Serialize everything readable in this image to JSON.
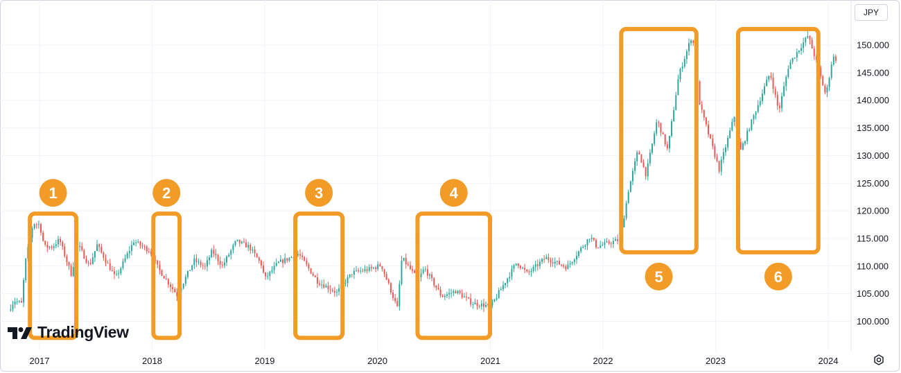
{
  "currency_label": "JPY",
  "logo_text": "TradingView",
  "chart_data": {
    "type": "candlestick",
    "title": "",
    "xlabel": "",
    "ylabel": "",
    "currency": "JPY",
    "ylim": [
      97.5,
      153.0
    ],
    "yticks": [
      100.0,
      105.0,
      110.0,
      115.0,
      120.0,
      125.0,
      130.0,
      135.0,
      140.0,
      145.0,
      150.0
    ],
    "ytick_labels": [
      "100.000",
      "105.000",
      "110.000",
      "115.000",
      "120.000",
      "125.000",
      "130.000",
      "135.000",
      "140.000",
      "145.000",
      "150.000"
    ],
    "xlim": [
      "2016-09-26",
      "2024-03-15"
    ],
    "xticks": [
      "2017-01-01",
      "2018-01-01",
      "2019-01-01",
      "2020-01-01",
      "2021-01-01",
      "2022-01-01",
      "2023-01-01",
      "2024-01-01"
    ],
    "xtick_labels": [
      "2017",
      "2018",
      "2019",
      "2020",
      "2021",
      "2022",
      "2023",
      "2024"
    ],
    "grid": true,
    "up_color": "#26a69a",
    "down_color": "#ef5350",
    "highlight_color": "#f29b26",
    "price_path": [
      [
        "2016-09-26",
        102.0
      ],
      [
        "2016-10-15",
        103.8
      ],
      [
        "2016-11-07",
        103.2
      ],
      [
        "2016-11-20",
        110.8
      ],
      [
        "2016-12-15",
        117.8
      ],
      [
        "2017-01-05",
        117.5
      ],
      [
        "2017-01-20",
        113.5
      ],
      [
        "2017-02-15",
        113.5
      ],
      [
        "2017-03-10",
        114.8
      ],
      [
        "2017-04-17",
        108.6
      ],
      [
        "2017-05-10",
        113.8
      ],
      [
        "2017-06-15",
        110.0
      ],
      [
        "2017-07-10",
        113.8
      ],
      [
        "2017-09-08",
        107.8
      ],
      [
        "2017-11-06",
        114.5
      ],
      [
        "2017-12-29",
        112.7
      ],
      [
        "2018-01-25",
        109.5
      ],
      [
        "2018-03-26",
        104.8
      ],
      [
        "2018-05-21",
        111.0
      ],
      [
        "2018-06-25",
        109.8
      ],
      [
        "2018-07-18",
        112.8
      ],
      [
        "2018-08-20",
        110.0
      ],
      [
        "2018-10-04",
        114.5
      ],
      [
        "2018-11-15",
        113.5
      ],
      [
        "2018-12-28",
        110.0
      ],
      [
        "2019-01-03",
        107.5
      ],
      [
        "2019-02-15",
        110.5
      ],
      [
        "2019-04-24",
        112.2
      ],
      [
        "2019-06-25",
        107.2
      ],
      [
        "2019-08-26",
        105.2
      ],
      [
        "2019-10-15",
        108.8
      ],
      [
        "2019-12-15",
        109.5
      ],
      [
        "2020-01-17",
        110.2
      ],
      [
        "2020-03-09",
        102.4
      ],
      [
        "2020-03-24",
        111.5
      ],
      [
        "2020-05-15",
        107.5
      ],
      [
        "2020-06-05",
        109.6
      ],
      [
        "2020-07-31",
        104.5
      ],
      [
        "2020-09-15",
        105.5
      ],
      [
        "2020-11-06",
        103.3
      ],
      [
        "2021-01-06",
        102.7
      ],
      [
        "2021-03-31",
        110.7
      ],
      [
        "2021-05-05",
        108.6
      ],
      [
        "2021-07-02",
        111.5
      ],
      [
        "2021-09-10",
        109.8
      ],
      [
        "2021-11-24",
        115.4
      ],
      [
        "2021-12-15",
        113.5
      ],
      [
        "2022-03-01",
        114.8
      ],
      [
        "2022-03-28",
        123.7
      ],
      [
        "2022-04-28",
        131.0
      ],
      [
        "2022-05-24",
        126.5
      ],
      [
        "2022-06-29",
        136.5
      ],
      [
        "2022-08-02",
        131.0
      ],
      [
        "2022-09-07",
        144.5
      ],
      [
        "2022-10-21",
        151.9
      ],
      [
        "2022-11-15",
        139.0
      ],
      [
        "2023-01-16",
        127.5
      ],
      [
        "2023-03-08",
        137.5
      ],
      [
        "2023-03-24",
        130.5
      ],
      [
        "2023-06-30",
        145.0
      ],
      [
        "2023-07-28",
        138.0
      ],
      [
        "2023-08-30",
        146.5
      ],
      [
        "2023-10-31",
        151.7
      ],
      [
        "2023-11-27",
        147.0
      ],
      [
        "2023-12-28",
        140.8
      ],
      [
        "2024-01-19",
        148.0
      ],
      [
        "2024-01-26",
        147.5
      ]
    ],
    "highlight_regions": [
      {
        "label": "1",
        "start": "2016-12-01",
        "end": "2017-04-30",
        "low": 97.0,
        "high": 119.5
      },
      {
        "label": "2",
        "start": "2018-01-05",
        "end": "2018-03-31",
        "low": 97.0,
        "high": 119.5
      },
      {
        "label": "3",
        "start": "2019-04-10",
        "end": "2019-09-10",
        "low": 97.0,
        "high": 119.5
      },
      {
        "label": "4",
        "start": "2020-05-10",
        "end": "2020-12-31",
        "low": 97.0,
        "high": 119.5
      },
      {
        "label": "5",
        "start": "2022-03-01",
        "end": "2022-10-31",
        "low": 112.5,
        "high": 152.9
      },
      {
        "label": "6",
        "start": "2023-03-15",
        "end": "2023-11-30",
        "low": 112.5,
        "high": 152.9
      }
    ]
  }
}
